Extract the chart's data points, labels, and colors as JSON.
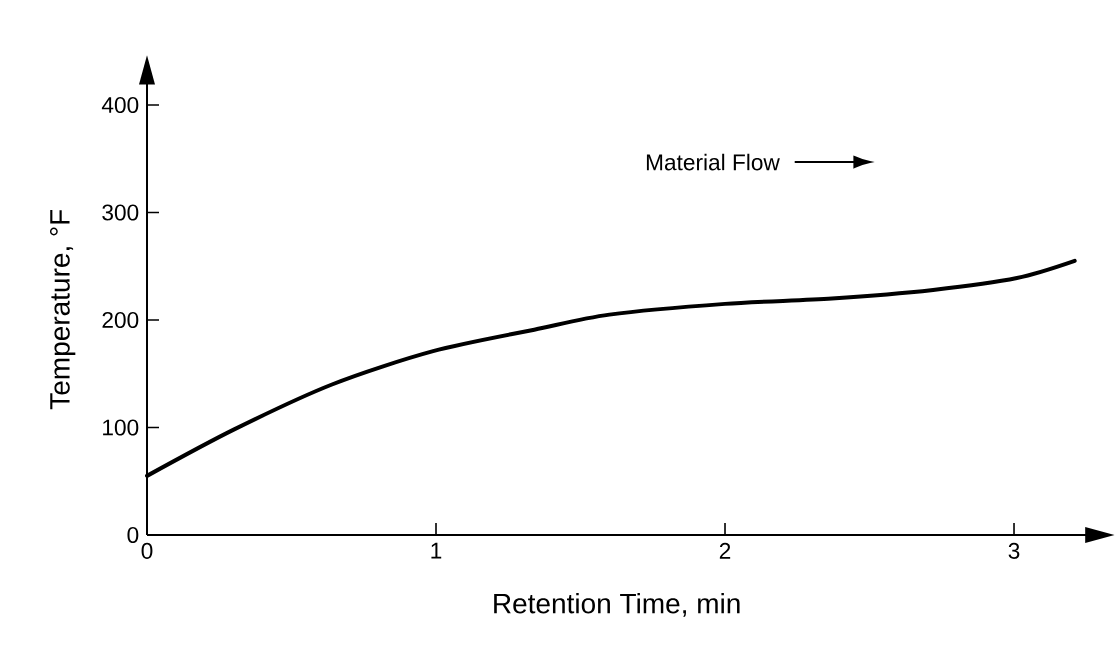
{
  "chart_data": {
    "type": "line",
    "xlabel": "Retention Time, min",
    "ylabel": "Temperature, °F",
    "x": [
      0,
      0.3,
      0.64,
      0.99,
      1.34,
      1.6,
      2.0,
      2.37,
      2.72,
      3.01,
      3.21
    ],
    "series": [
      {
        "color": "#000000",
        "values": [
          55,
          98,
          140,
          171,
          191,
          205,
          215,
          220,
          228,
          239,
          255
        ]
      }
    ],
    "xlim": [
      0,
      3.25
    ],
    "ylim": [
      0,
      420
    ],
    "xticks": [
      0,
      1,
      2,
      3
    ],
    "yticks": [
      0,
      100,
      200,
      300,
      400
    ],
    "annotations": [
      "Material Flow"
    ]
  }
}
